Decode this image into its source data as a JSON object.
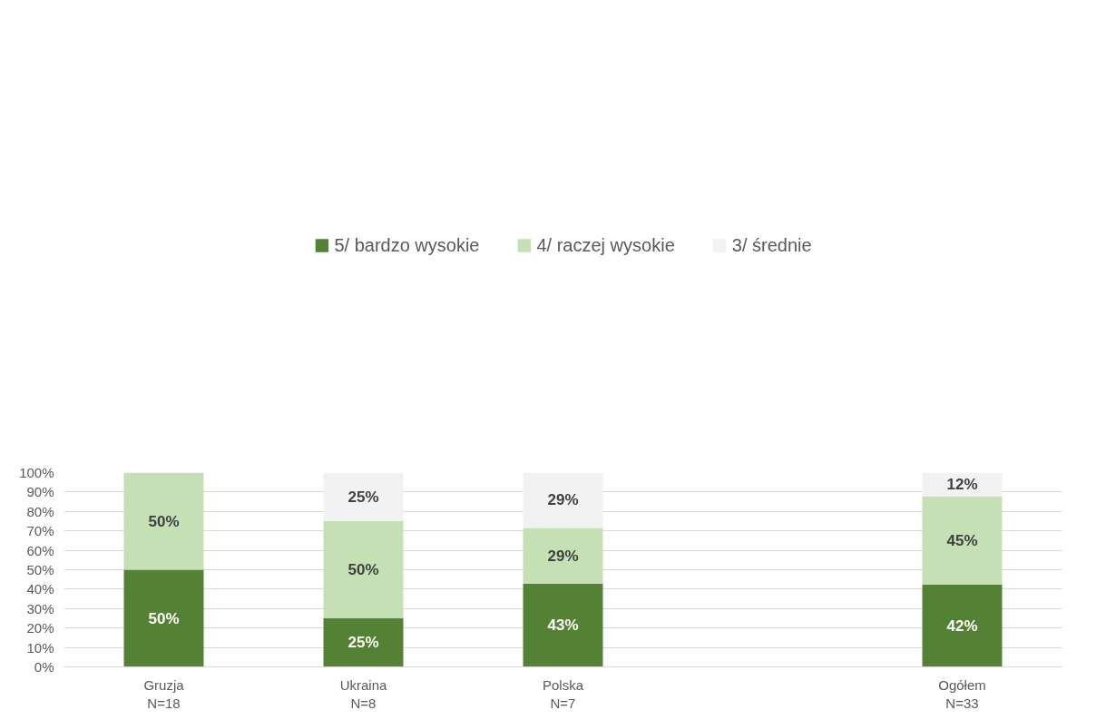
{
  "chart_data": {
    "type": "bar",
    "stacked": true,
    "categories": [
      "Gruzja\nN=18",
      "Ukraina\nN=8",
      "Polska\nN=7",
      null,
      "Ogółem\nN=33"
    ],
    "series": [
      {
        "name": "5/ bardzo wysokie",
        "color": "#548235",
        "values": [
          50,
          25,
          42.9,
          null,
          42.4
        ],
        "value_labels": [
          "50%",
          "25%",
          "43%",
          null,
          "42%"
        ]
      },
      {
        "name": "4/ raczej wysokie",
        "color": "#c5e0b4",
        "values": [
          50,
          50,
          28.6,
          null,
          45.5
        ],
        "value_labels": [
          "50%",
          "50%",
          "29%",
          null,
          "45%"
        ]
      },
      {
        "name": "3/ średnie",
        "color": "#f2f2f2",
        "values": [
          null,
          25,
          28.6,
          null,
          12.1
        ],
        "value_labels": [
          null,
          "25%",
          "29%",
          null,
          "12%"
        ]
      }
    ],
    "ylim": [
      0,
      100
    ],
    "yticks": [
      {
        "value": 0,
        "label": "0%"
      },
      {
        "value": 10,
        "label": "10%"
      },
      {
        "value": 20,
        "label": "20%"
      },
      {
        "value": 30,
        "label": "30%"
      },
      {
        "value": 40,
        "label": "40%"
      },
      {
        "value": 50,
        "label": "50%"
      },
      {
        "value": 60,
        "label": "60%"
      },
      {
        "value": 70,
        "label": "70%"
      },
      {
        "value": 80,
        "label": "80%"
      },
      {
        "value": 90,
        "label": "90%"
      },
      {
        "value": 100,
        "label": "100%"
      }
    ],
    "grid": "y",
    "legend": "top"
  }
}
